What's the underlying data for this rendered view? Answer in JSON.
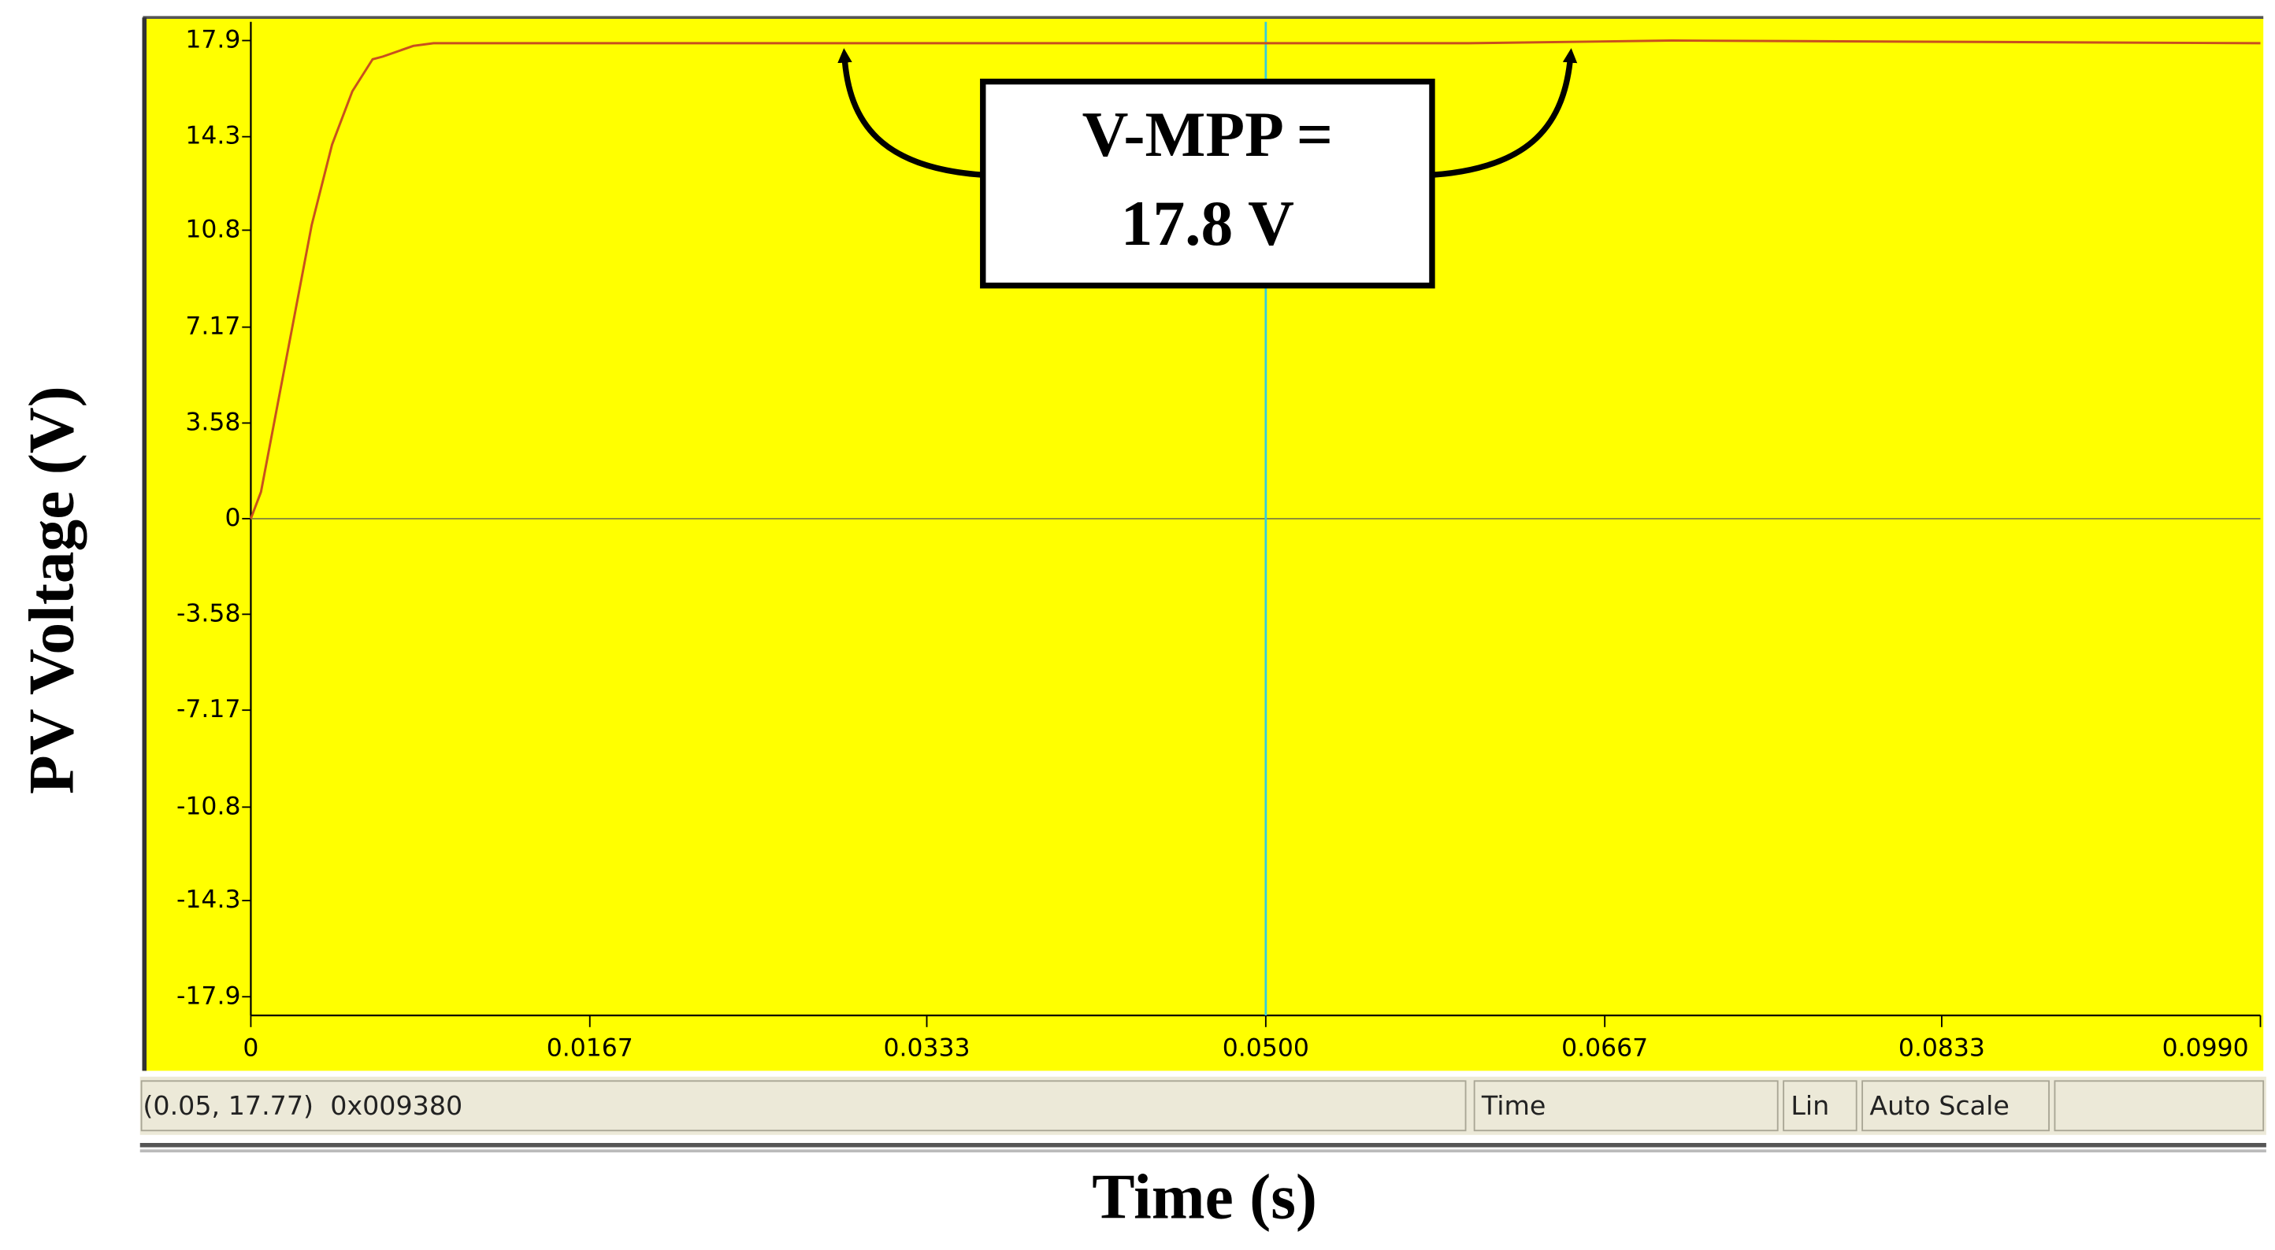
{
  "chart_data": {
    "type": "line",
    "ylabel": "PV Voltage (V)",
    "xlabel": "Time (s)",
    "annotation": [
      "V-MPP =",
      "17.8 V"
    ],
    "x": [
      0,
      0.0005,
      0.001,
      0.002,
      0.003,
      0.004,
      0.005,
      0.006,
      0.0065,
      0.008,
      0.009,
      0.02,
      0.05,
      0.06,
      0.07,
      0.099
    ],
    "series": [
      {
        "color": "#c8501e",
        "values": [
          0,
          1,
          3,
          7,
          11,
          14,
          16,
          17.2,
          17.3,
          17.7,
          17.8,
          17.8,
          17.8,
          17.8,
          17.9,
          17.8
        ]
      }
    ],
    "xlim": [
      0,
      0.099
    ],
    "ylim": [
      -18.6,
      18.6
    ],
    "xticks": [
      0,
      0.0167,
      0.0333,
      {
        "value": 0.05,
        "label": "0.0500"
      },
      0.0667,
      0.0833,
      {
        "value": 0.099,
        "label": "0.0990"
      }
    ],
    "yticks": [
      17.9,
      14.3,
      10.8,
      7.17,
      3.58,
      0,
      -3.58,
      -7.17,
      -10.8,
      -14.3,
      -17.9
    ],
    "cursor_x": 0.05,
    "background": "#ffff00"
  },
  "status_bar": {
    "readout": "(0.05, 17.77)  0x009380",
    "axis": "Time",
    "scale": "Lin",
    "mode": "Auto Scale"
  }
}
